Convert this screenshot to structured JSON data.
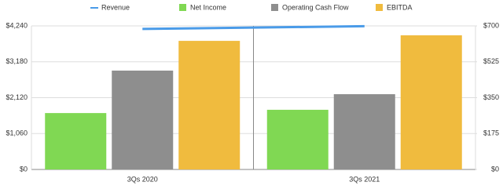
{
  "chart_data": {
    "type": "bar",
    "categories": [
      "3Qs 2020",
      "3Qs 2021"
    ],
    "series": [
      {
        "name": "Revenue",
        "color": "#4a9be8",
        "type": "line",
        "axis": "y",
        "values": [
          4150,
          4230
        ]
      },
      {
        "name": "Net Income",
        "color": "#80d853",
        "type": "bar",
        "axis": "y2",
        "values": [
          275,
          291
        ]
      },
      {
        "name": "Operating Cash Flow",
        "color": "#8e8e8e",
        "type": "bar",
        "axis": "y2",
        "values": [
          482,
          367
        ]
      },
      {
        "name": "EBITDA",
        "color": "#f0bb3e",
        "type": "bar",
        "axis": "y2",
        "values": [
          627,
          654
        ]
      }
    ],
    "ylim": [
      0,
      4240
    ],
    "yticks": [
      {
        "value": 0,
        "label": "$0"
      },
      {
        "value": 1060,
        "label": "$1,060"
      },
      {
        "value": 2120,
        "label": "$2,120"
      },
      {
        "value": 3180,
        "label": "$3,180"
      },
      {
        "value": 4240,
        "label": "$4,240"
      }
    ],
    "y2lim": [
      0,
      700
    ],
    "y2ticks": [
      {
        "value": 0,
        "label": "$0"
      },
      {
        "value": 175,
        "label": "$175"
      },
      {
        "value": 350,
        "label": "$350"
      },
      {
        "value": 525,
        "label": "$525"
      },
      {
        "value": 700,
        "label": "$700"
      }
    ],
    "grid": true,
    "legend": "top"
  }
}
